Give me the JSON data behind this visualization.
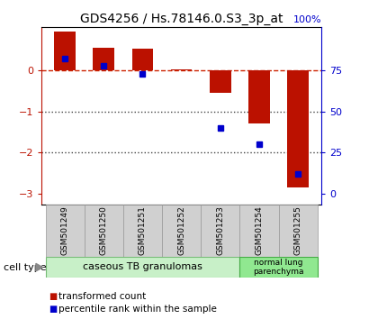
{
  "title": "GDS4256 / Hs.78146.0.S3_3p_at",
  "samples": [
    "GSM501249",
    "GSM501250",
    "GSM501251",
    "GSM501252",
    "GSM501253",
    "GSM501254",
    "GSM501255"
  ],
  "transformed_counts": [
    0.95,
    0.55,
    0.52,
    0.02,
    -0.55,
    -1.3,
    -2.85
  ],
  "percentile_ranks": [
    82,
    78,
    73,
    null,
    40,
    30,
    12
  ],
  "cell_type_1_label": "caseous TB granulomas",
  "cell_type_1_span": [
    0,
    4
  ],
  "cell_type_1_color": "#c8f0c8",
  "cell_type_2_label": "normal lung\nparenchyma",
  "cell_type_2_span": [
    5,
    6
  ],
  "cell_type_2_color": "#90e890",
  "ylim": [
    -3.25,
    1.05
  ],
  "yticks": [
    0,
    -1,
    -2,
    -3
  ],
  "bar_color": "#bb1100",
  "dot_color": "#0000cc",
  "dashed_line_color": "#cc2200",
  "dotted_line_color": "#444444",
  "background_color": "#ffffff",
  "label_bg_color": "#d0d0d0",
  "legend_red_label": "transformed count",
  "legend_blue_label": "percentile rank within the sample",
  "cell_type_label": "cell type"
}
